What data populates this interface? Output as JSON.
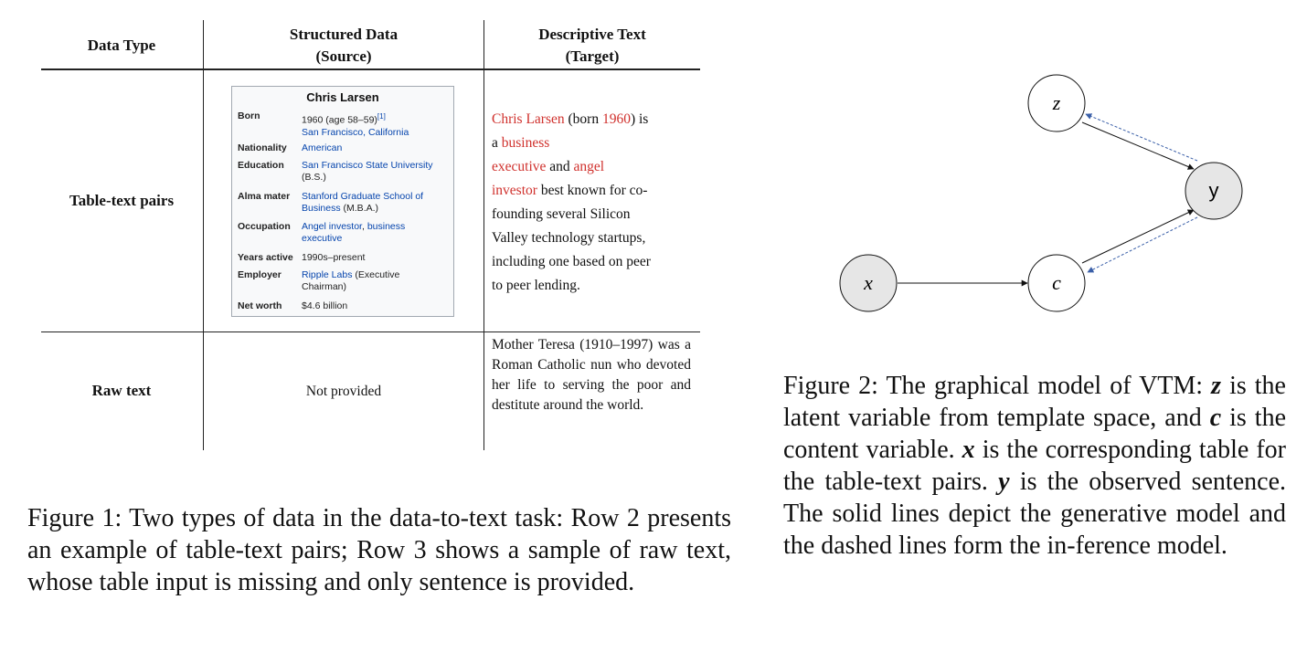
{
  "table": {
    "headers": {
      "data_type": "Data Type",
      "structured_line1": "Structured Data",
      "structured_line2": "(Source)",
      "descriptive_line1": "Descriptive Text",
      "descriptive_line2": "(Target)"
    },
    "row1_label": "Table-text pairs",
    "row2_label": "Raw text",
    "row2_source": "Not provided",
    "infobox": {
      "title": "Chris Larsen",
      "born_key": "Born",
      "born_val1": "1960 (age 58–59)",
      "born_ref": "[1]",
      "born_val2": "San Francisco, California",
      "nationality_key": "Nationality",
      "nationality_val": "American",
      "education_key": "Education",
      "education_val1": "San Francisco State University",
      "education_val2": "(B.S.)",
      "alma_key": "Alma mater",
      "alma_val1": "Stanford Graduate School of",
      "alma_val2a": "Business",
      "alma_val2b": " (M.B.A.)",
      "occupation_key": "Occupation",
      "occupation_val1a": "Angel investor",
      "occupation_val1b": ", ",
      "occupation_val1c": "business",
      "occupation_val2": "executive",
      "years_key": "Years active",
      "years_val": "1990s–present",
      "employer_key": "Employer",
      "employer_val1a": "Ripple Labs",
      "employer_val1b": " (Executive",
      "employer_val2": "Chairman)",
      "networth_key": "Net worth",
      "networth_val": "$4.6 billion"
    },
    "desc_lines": {
      "l1_red": "Chris Larsen",
      "l1_mid": " (born ",
      "l1_red2": "1960",
      "l1_end": ") is",
      "l2_a": "a ",
      "l2_red": "business",
      "l3_red": "executive",
      "l3_mid": " and ",
      "l3_red2": "angel",
      "l4_red": "investor",
      "l4_end": " best known for co-",
      "l5": "founding several Silicon",
      "l6": "Valley technology startups,",
      "l7": "including one based on peer",
      "l8": "to peer lending."
    },
    "raw_text": "Mother Teresa (1910–1997) was a Roman Catholic nun who devoted her life to serving the poor and destitute around the world."
  },
  "figure1_caption": "Figure 1: Two types of data in the data-to-text task: Row 2 presents an example of table-text pairs; Row 3 shows a sample of raw text, whose table input is missing and only sentence is provided.",
  "graph": {
    "nodes": {
      "z": "z",
      "y": "y",
      "x": "x",
      "c": "c"
    }
  },
  "figure2_caption": {
    "p1": "Figure 2: The graphical model of VTM: ",
    "z": "z",
    "p2": " is the latent variable from template space, and ",
    "c": "c",
    "p3": " is the content variable. ",
    "x": "x",
    "p4": " is the corresponding table for the table-text pairs. ",
    "y": "y",
    "p5": " is the observed sentence. The solid lines depict the generative model and the dashed lines form the in-ference model."
  }
}
